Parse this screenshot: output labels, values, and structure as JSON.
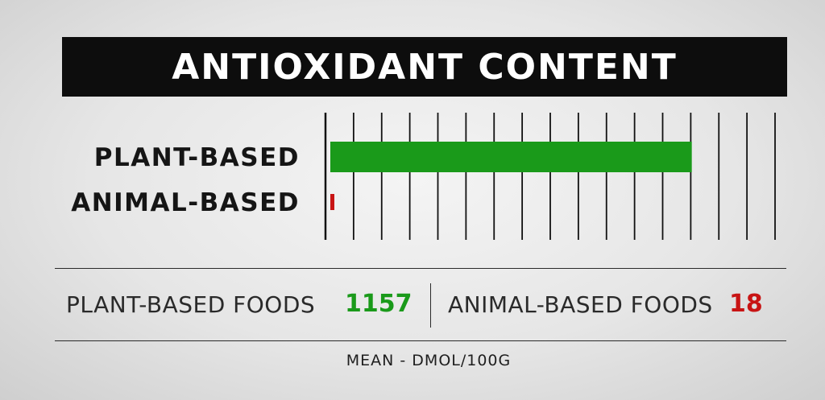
{
  "title": "ANTIOXIDANT CONTENT",
  "colors": {
    "plant": "#1a9a1a",
    "animal": "#c81414",
    "title_bg": "#0d0d0d"
  },
  "chart_data": {
    "type": "bar",
    "orientation": "horizontal",
    "title": "ANTIOXIDANT CONTENT",
    "categories": [
      "PLANT-BASED",
      "ANIMAL-BASED"
    ],
    "values": [
      1157,
      18
    ],
    "xlim": [
      0,
      1420
    ],
    "grid": true,
    "grid_lines": 17
  },
  "summary": {
    "plant_label": "PLANT-BASED FOODS",
    "plant_value": "1157",
    "animal_label": "ANIMAL-BASED FOODS",
    "animal_value": "18",
    "units": "MEAN - DMOL/100G"
  }
}
